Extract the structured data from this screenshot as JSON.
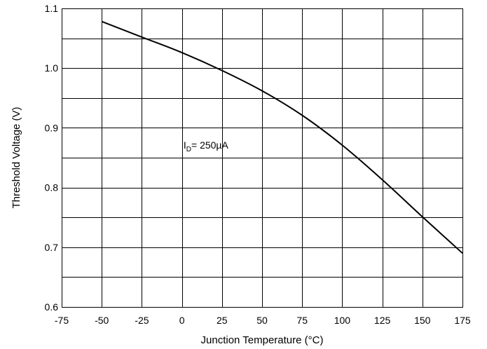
{
  "chart_data": {
    "type": "line",
    "title": "",
    "xlabel": "Junction Temperature  (°C)",
    "ylabel": "Threshold Voltage (V)",
    "xlim": [
      -75,
      175
    ],
    "ylim": [
      0.6,
      1.1
    ],
    "x_ticks": [
      -75,
      -50,
      -25,
      0,
      25,
      50,
      75,
      100,
      125,
      150,
      175
    ],
    "x_tick_labels": [
      "-75",
      "-50",
      "-25",
      "0",
      "25",
      "50",
      "75",
      "100",
      "125",
      "150",
      "175"
    ],
    "y_ticks": [
      0.6,
      0.7,
      0.8,
      0.9,
      1.0,
      1.1
    ],
    "y_tick_labels": [
      "0.6",
      "0.7",
      "0.8",
      "0.9",
      "1.0",
      "1.1"
    ],
    "y_minor_grid": [
      0.65,
      0.75,
      0.85,
      0.95,
      1.05
    ],
    "grid": true,
    "series": [
      {
        "x": [
          -50,
          -25,
          0,
          25,
          50,
          75,
          100,
          125,
          150,
          175
        ],
        "values": [
          1.078,
          1.052,
          1.026,
          0.996,
          0.962,
          0.921,
          0.871,
          0.813,
          0.751,
          0.69
        ]
      }
    ],
    "annotation": {
      "main": "I",
      "sub": "D",
      "rest": "= 250µA",
      "x": 1,
      "y": 0.865
    }
  }
}
